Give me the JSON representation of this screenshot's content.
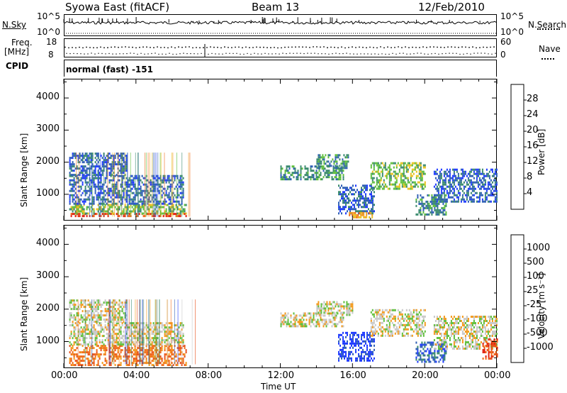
{
  "header": {
    "site": "Syowa East (fitACF)",
    "beam": "Beam 13",
    "date": "12/Feb/2010"
  },
  "strip_labels": {
    "nsky": "N.Sky",
    "nsky_top": "10^5",
    "nsky_bottom": "10^0",
    "nsearch": "N.Search",
    "nsearch_top": "10^5",
    "nsearch_bottom": "10^0",
    "freq_label": "Freq.",
    "freq_unit": "[MHz]",
    "freq_top": "18",
    "freq_bottom": "8",
    "nave_label": "Nave",
    "nave_top": "60",
    "nave_bottom": "0",
    "cpid_label": "CPID",
    "cpid_value": "normal (fast) -151"
  },
  "chart_data": [
    {
      "type": "heatmap",
      "panel": "power",
      "x_ticks": [
        "00:00",
        "04:00",
        "08:00",
        "12:00",
        "16:00",
        "20:00",
        "00:00"
      ],
      "xlim_hours": [
        0,
        24
      ],
      "ylabel": "Slant Range [km]",
      "y_ticks": [
        1000,
        2000,
        3000,
        4000
      ],
      "ylim": [
        180,
        4600
      ],
      "colorbar": {
        "label": "Power [dB]",
        "ticks": [
          "4",
          "8",
          "12",
          "16",
          "20",
          "24",
          "28"
        ],
        "colors": [
          "#1f3bff",
          "#2f5fb5",
          "#3a8a6e",
          "#5fbf3c",
          "#e8c21e",
          "#f39a1c",
          "#f06a18",
          "#e02010"
        ]
      },
      "regions": [
        {
          "t": [
            0.3,
            6.8
          ],
          "r": [
            300,
            420
          ],
          "level": 7
        },
        {
          "t": [
            0.3,
            6.8
          ],
          "r": [
            420,
            700
          ],
          "level": 3
        },
        {
          "t": [
            0.3,
            6.6
          ],
          "r": [
            700,
            1600
          ],
          "level": 1
        },
        {
          "t": [
            0.3,
            3.5
          ],
          "r": [
            1600,
            2300
          ],
          "level": 1
        },
        {
          "t": [
            12.0,
            15.5
          ],
          "r": [
            1500,
            1900
          ],
          "level": 2
        },
        {
          "t": [
            14.0,
            15.8
          ],
          "r": [
            1800,
            2250
          ],
          "level": 2
        },
        {
          "t": [
            15.2,
            17.2
          ],
          "r": [
            400,
            1300
          ],
          "level": 1
        },
        {
          "t": [
            15.8,
            17.2
          ],
          "r": [
            300,
            450
          ],
          "level": 5
        },
        {
          "t": [
            17.0,
            20.0
          ],
          "r": [
            1200,
            2000
          ],
          "level": 3
        },
        {
          "t": [
            19.5,
            21.2
          ],
          "r": [
            350,
            1000
          ],
          "level": 2
        },
        {
          "t": [
            20.5,
            24.0
          ],
          "r": [
            800,
            1800
          ],
          "level": 1
        }
      ]
    },
    {
      "type": "heatmap",
      "panel": "velocity",
      "x_ticks": [
        "00:00",
        "04:00",
        "08:00",
        "12:00",
        "16:00",
        "20:00",
        "00:00"
      ],
      "xlabel": "Time UT",
      "xlim_hours": [
        0,
        24
      ],
      "ylabel": "Slant Range [km]",
      "y_ticks": [
        1000,
        2000,
        3000,
        4000
      ],
      "ylim": [
        180,
        4600
      ],
      "colorbar": {
        "label": "Velocity [m s⁻¹]",
        "ticks": [
          "1000",
          "500",
          "100",
          "25",
          "-25",
          "-100",
          "-500",
          "-1000"
        ],
        "colors": [
          "#1f3bff",
          "#2f5fb5",
          "#3a8a6e",
          "#5fbf3c",
          "#c8c8c8",
          "#f39a1c",
          "#f06a18",
          "#e8501a",
          "#e02010"
        ]
      },
      "regions": [
        {
          "t": [
            0.3,
            6.8
          ],
          "r": [
            250,
            900
          ],
          "level": 6
        },
        {
          "t": [
            0.3,
            6.6
          ],
          "r": [
            900,
            1600
          ],
          "level": 4
        },
        {
          "t": [
            0.3,
            3.5
          ],
          "r": [
            1600,
            2300
          ],
          "level": 4
        },
        {
          "t": [
            12.0,
            15.5
          ],
          "r": [
            1500,
            1900
          ],
          "level": 4
        },
        {
          "t": [
            14.0,
            16.0
          ],
          "r": [
            1800,
            2250
          ],
          "level": 4
        },
        {
          "t": [
            15.2,
            17.2
          ],
          "r": [
            400,
            1300
          ],
          "level": 0
        },
        {
          "t": [
            17.0,
            20.0
          ],
          "r": [
            1200,
            2000
          ],
          "level": 4
        },
        {
          "t": [
            19.5,
            21.2
          ],
          "r": [
            350,
            1000
          ],
          "level": 1
        },
        {
          "t": [
            20.5,
            24.0
          ],
          "r": [
            800,
            1800
          ],
          "level": 4
        },
        {
          "t": [
            23.2,
            24.0
          ],
          "r": [
            500,
            1100
          ],
          "level": 7
        }
      ]
    }
  ]
}
